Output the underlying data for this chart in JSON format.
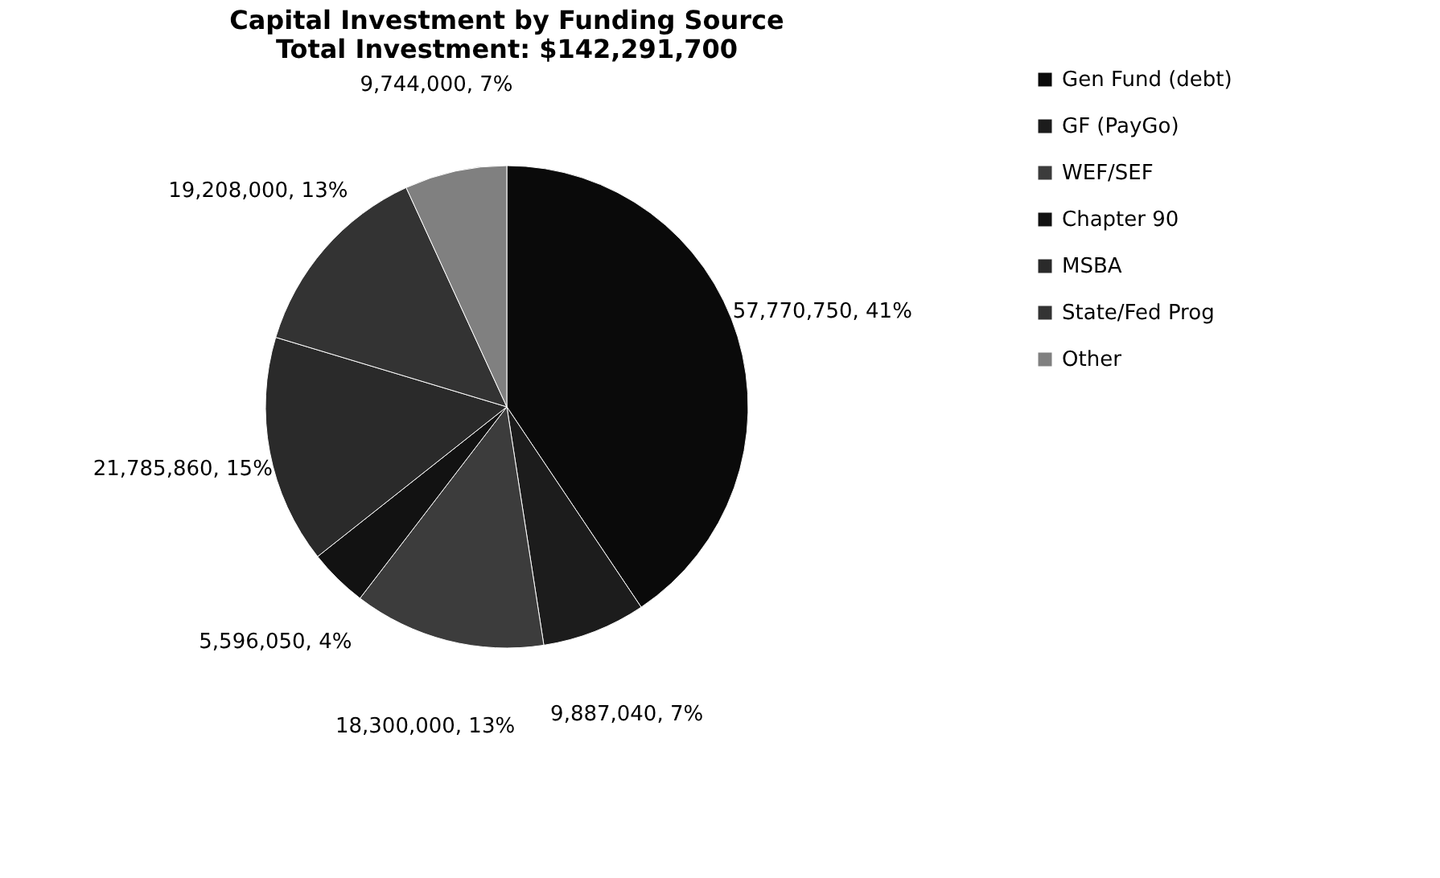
{
  "chart_data": {
    "type": "pie",
    "title": [
      "Capital Investment by Funding Source",
      "Total Investment: $142,291,700"
    ],
    "categories": [
      "Gen Fund (debt)",
      "GF (PayGo)",
      "WEF/SEF",
      "Chapter 90",
      "MSBA",
      "State/Fed Prog",
      "Other"
    ],
    "values": [
      57770750,
      9887040,
      18300000,
      5596050,
      21785860,
      19208000,
      9744000
    ],
    "colors": [
      "#0a0a0a",
      "#1c1c1c",
      "#3c3c3c",
      "#121212",
      "#2a2a2a",
      "#333333",
      "#808080"
    ],
    "value_labels": [
      "57,770,750, 41%",
      "9,887,040, 7%",
      "18,300,000, 13%",
      "5,596,050, 4%",
      "21,785,860, 15%",
      "19,208,000, 13%",
      "9,744,000, 7%"
    ],
    "legend": "right"
  }
}
